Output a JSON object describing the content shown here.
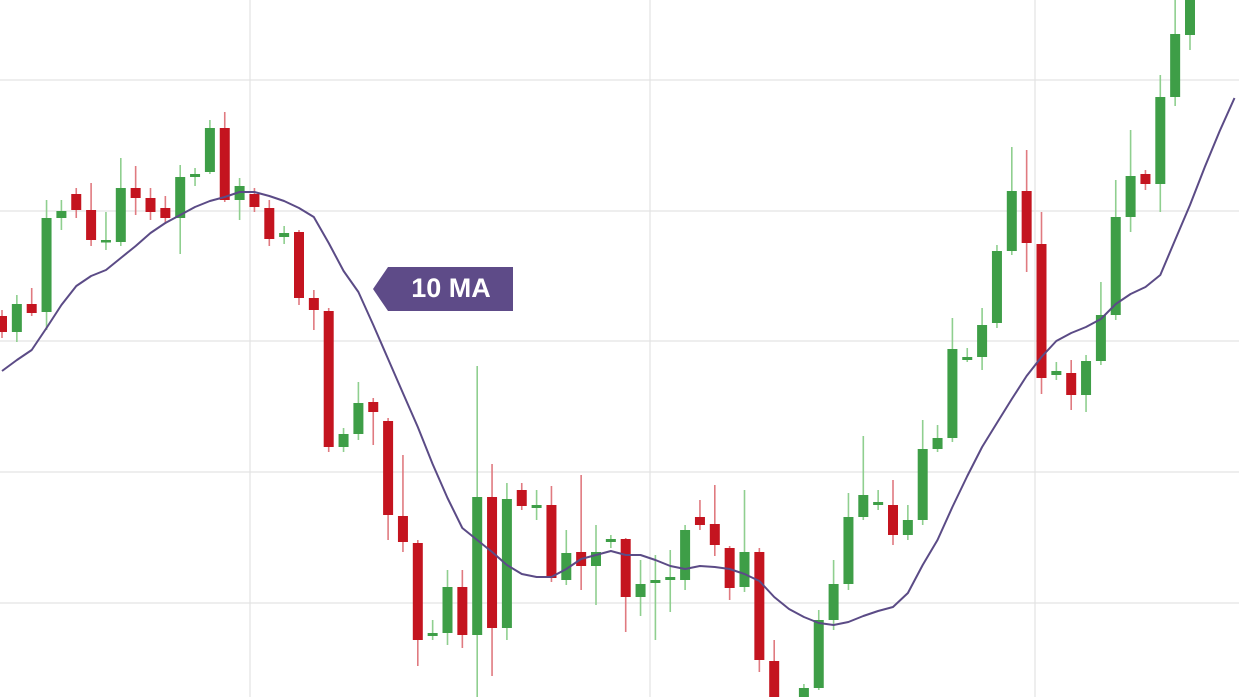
{
  "chart_data": {
    "type": "candlestick",
    "up_color": "#3e9e47",
    "down_color": "#c4141f",
    "grid": true,
    "ylim": [
      0,
      697
    ],
    "yticks": [
      94,
      225,
      356,
      486,
      617
    ],
    "open": [
      381,
      365,
      393,
      385,
      479,
      503,
      487,
      455,
      455,
      509,
      499,
      489,
      479,
      520,
      525,
      569,
      497,
      503,
      489,
      460,
      465,
      399,
      386,
      250,
      263,
      295,
      276,
      181,
      154,
      61,
      64,
      110,
      62,
      200,
      69,
      207,
      189,
      192,
      117,
      145,
      131,
      155,
      158,
      100,
      114,
      117,
      117,
      180,
      173,
      149,
      110,
      145,
      36,
      null,
      0,
      9,
      77,
      113,
      180,
      192,
      192,
      162,
      177,
      248,
      259,
      337,
      340,
      374,
      446,
      506,
      453,
      322,
      324,
      302,
      336,
      382,
      480,
      523,
      513,
      600,
      662,
      null,
      null,
      null
    ],
    "high": [
      387,
      402,
      409,
      497,
      497,
      509,
      514,
      485,
      539,
      531,
      509,
      501,
      532,
      529,
      577,
      585,
      519,
      509,
      497,
      471,
      467,
      407,
      389,
      269,
      315,
      299,
      279,
      242,
      157,
      77,
      127,
      127,
      331,
      233,
      214,
      214,
      207,
      211,
      167,
      222,
      172,
      162,
      159,
      137,
      142,
      147,
      172,
      197,
      212,
      151,
      207,
      149,
      57,
      null,
      13,
      87,
      137,
      204,
      261,
      207,
      217,
      192,
      277,
      272,
      379,
      349,
      389,
      452,
      550,
      547,
      485,
      335,
      337,
      342,
      415,
      517,
      567,
      527,
      622,
      697,
      697,
      null,
      null,
      null
    ],
    "low": [
      359,
      355,
      381,
      367,
      467,
      479,
      451,
      447,
      451,
      482,
      477,
      473,
      443,
      511,
      523,
      495,
      477,
      485,
      451,
      453,
      392,
      367,
      245,
      245,
      257,
      252,
      157,
      145,
      31,
      57,
      52,
      49,
      0,
      21,
      57,
      187,
      177,
      115,
      112,
      107,
      92,
      149,
      65,
      81,
      57,
      85,
      107,
      167,
      141,
      97,
      105,
      25,
      0,
      null,
      0,
      7,
      67,
      107,
      177,
      187,
      152,
      157,
      172,
      245,
      255,
      335,
      327,
      369,
      442,
      425,
      303,
      317,
      287,
      285,
      332,
      377,
      465,
      507,
      485,
      591,
      647,
      null,
      null,
      null
    ],
    "close": [
      365,
      393,
      384,
      479,
      486,
      487,
      457,
      457,
      509,
      499,
      485,
      479,
      520,
      523,
      569,
      497,
      511,
      490,
      458,
      464,
      399,
      387,
      250,
      263,
      294,
      285,
      182,
      155,
      57,
      64,
      110,
      62,
      200,
      69,
      198,
      191,
      192,
      119,
      144,
      131,
      145,
      158,
      100,
      113,
      117,
      120,
      167,
      172,
      152,
      109,
      145,
      37,
      0,
      null,
      9,
      77,
      113,
      180,
      202,
      195,
      162,
      177,
      248,
      259,
      348,
      340,
      372,
      446,
      506,
      454,
      319,
      326,
      302,
      336,
      382,
      480,
      521,
      513,
      600,
      663,
      697,
      null,
      null,
      null
    ],
    "series": [
      {
        "name": "10 MA",
        "color": "#5b4b86",
        "values": [
          326,
          337,
          347,
          369,
          392,
          411,
          421,
          427,
          439,
          451,
          464,
          474,
          482,
          490,
          496,
          500,
          505,
          505,
          501,
          496,
          489,
          480,
          454,
          426,
          405,
          372,
          338,
          304,
          270,
          233,
          199,
          169,
          157,
          145,
          132,
          123,
          120,
          120,
          128,
          138,
          142,
          146,
          142,
          142,
          137,
          131,
          128,
          131,
          130,
          128,
          123,
          116,
          100,
          88,
          80,
          74,
          72,
          75,
          81,
          86,
          90,
          104,
          132,
          157,
          190,
          221,
          250,
          274,
          298,
          321,
          340,
          356,
          364,
          370,
          378,
          393,
          403,
          410,
          422,
          457,
          492,
          530,
          566,
          599
        ]
      }
    ]
  }
}
